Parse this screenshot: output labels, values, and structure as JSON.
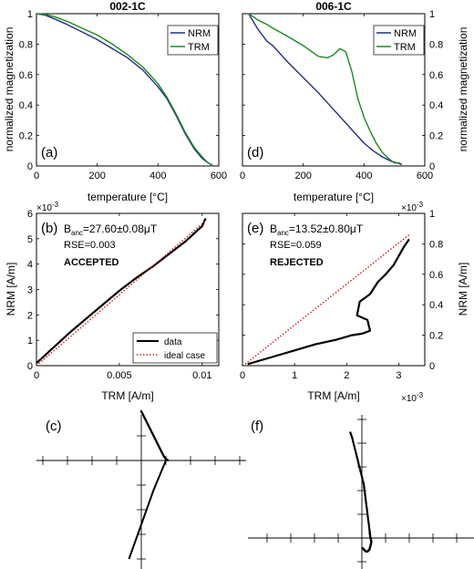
{
  "colors": {
    "nrm": "#1f2f8a",
    "trm": "#1a8a1a",
    "data": "#000000",
    "ideal": "#d62020",
    "axis": "#000000"
  },
  "chart_data": [
    {
      "panel": "(a)",
      "type": "line",
      "title": "002-1C",
      "xlabel": "temperature [°C]",
      "ylabel": "normalized magnetization",
      "xlim": [
        0,
        600
      ],
      "ylim": [
        0,
        1
      ],
      "xticks": [
        "0",
        "200",
        "400",
        "600"
      ],
      "yticks": [
        "0",
        "0.2",
        "0.4",
        "0.6",
        "0.8",
        "1"
      ],
      "legend": {
        "placement": "top-right",
        "entries": [
          "NRM",
          "TRM"
        ]
      },
      "series": [
        {
          "name": "NRM",
          "x": [
            0,
            30,
            60,
            100,
            150,
            200,
            250,
            300,
            350,
            400,
            430,
            460,
            490,
            520,
            545,
            565,
            575,
            580
          ],
          "y": [
            1.0,
            0.99,
            0.965,
            0.93,
            0.88,
            0.83,
            0.77,
            0.71,
            0.63,
            0.52,
            0.44,
            0.33,
            0.21,
            0.11,
            0.05,
            0.02,
            0.01,
            0.0
          ]
        },
        {
          "name": "TRM",
          "x": [
            0,
            30,
            60,
            100,
            150,
            200,
            250,
            300,
            350,
            400,
            430,
            460,
            490,
            520,
            545,
            565,
            575,
            580
          ],
          "y": [
            1.0,
            0.995,
            0.98,
            0.95,
            0.905,
            0.86,
            0.8,
            0.73,
            0.65,
            0.54,
            0.45,
            0.34,
            0.22,
            0.12,
            0.06,
            0.02,
            0.01,
            0.0
          ]
        }
      ]
    },
    {
      "panel": "(d)",
      "type": "line",
      "title": "006-1C",
      "xlabel": "temperature [°C]",
      "ylabel": "normalized magnetization",
      "xlim": [
        0,
        600
      ],
      "ylim": [
        0,
        1
      ],
      "xticks": [
        "0",
        "200",
        "400",
        "600"
      ],
      "yticks": [
        "0",
        "0.2",
        "0.4",
        "0.6",
        "0.8",
        "1"
      ],
      "legend": {
        "placement": "top-right",
        "entries": [
          "NRM",
          "TRM"
        ]
      },
      "series": [
        {
          "name": "NRM",
          "x": [
            20,
            50,
            80,
            100,
            150,
            200,
            250,
            300,
            350,
            400,
            430,
            460,
            490,
            510,
            525
          ],
          "y": [
            1.0,
            0.9,
            0.82,
            0.79,
            0.68,
            0.58,
            0.48,
            0.37,
            0.26,
            0.15,
            0.1,
            0.06,
            0.03,
            0.02,
            0.01
          ]
        },
        {
          "name": "TRM",
          "x": [
            20,
            50,
            80,
            100,
            150,
            200,
            250,
            280,
            300,
            320,
            340,
            360,
            380,
            400,
            420,
            440,
            460,
            480,
            500,
            520
          ],
          "y": [
            1.0,
            0.96,
            0.93,
            0.905,
            0.85,
            0.79,
            0.72,
            0.71,
            0.73,
            0.77,
            0.75,
            0.62,
            0.44,
            0.32,
            0.23,
            0.15,
            0.09,
            0.05,
            0.02,
            0.02
          ]
        }
      ]
    },
    {
      "panel": "(b)",
      "type": "line",
      "xlabel": "TRM [A/m]",
      "ylabel": "NRM [A/m]",
      "xlim": [
        0,
        0.011
      ],
      "ylim": [
        0,
        0.006
      ],
      "xticks": [
        "0",
        "0.005",
        "0.01"
      ],
      "yticks": [
        "0",
        "1",
        "2",
        "3",
        "4",
        "5",
        "6"
      ],
      "y_multiplier": "×10",
      "y_multiplier_exp": "-3",
      "annotation": {
        "b_label": "B",
        "b_sub": "anc",
        "b_value": "=27.60±0.08μT",
        "rse": "RSE=0.003",
        "status": "ACCEPTED"
      },
      "legend": {
        "placement": "bottom-right",
        "entries": [
          "data",
          "ideal case"
        ]
      },
      "series": [
        {
          "name": "data",
          "x": [
            0,
            0.0005,
            0.001,
            0.002,
            0.003,
            0.004,
            0.005,
            0.006,
            0.007,
            0.008,
            0.009,
            0.0095,
            0.01,
            0.0102
          ],
          "y": [
            0.0001,
            0.0004,
            0.0007,
            0.0013,
            0.00185,
            0.0024,
            0.00295,
            0.00345,
            0.0039,
            0.0044,
            0.0049,
            0.0052,
            0.0055,
            0.0058
          ]
        },
        {
          "name": "ideal case",
          "x": [
            0,
            0.0102
          ],
          "y": [
            0,
            0.0057
          ]
        }
      ]
    },
    {
      "panel": "(e)",
      "type": "line",
      "xlabel": "TRM [A/m]",
      "ylabel": "NRM [A/m]",
      "xlim": [
        0,
        0.0035
      ],
      "ylim": [
        0,
        0.001
      ],
      "xticks": [
        "0",
        "1",
        "2",
        "3"
      ],
      "yticks": [
        "0",
        "0.2",
        "0.4",
        "0.6",
        "0.8",
        "1"
      ],
      "x_multiplier": "×10",
      "x_multiplier_exp": "-3",
      "y_multiplier": "×10",
      "y_multiplier_exp": "-3",
      "annotation": {
        "b_label": "B",
        "b_sub": "anc",
        "b_value": "=13.52±0.80μT",
        "rse": "RSE=0.059",
        "status": "REJECTED"
      },
      "series": [
        {
          "name": "data",
          "x": [
            0.0001,
            0.0003,
            0.0006,
            0.001,
            0.0014,
            0.0018,
            0.0021,
            0.0023,
            0.00245,
            0.0024,
            0.0022,
            0.00225,
            0.00245,
            0.0026,
            0.00275,
            0.0029,
            0.003,
            0.0031,
            0.0032
          ],
          "y": [
            1e-05,
            3e-05,
            6e-05,
            0.0001,
            0.00014,
            0.00017,
            0.0002,
            0.00021,
            0.00023,
            0.0003,
            0.00033,
            0.00042,
            0.00047,
            0.00055,
            0.0006,
            0.00066,
            0.00072,
            0.00078,
            0.00083
          ]
        },
        {
          "name": "ideal",
          "x": [
            5e-05,
            0.0032
          ],
          "y": [
            1e-05,
            0.00086
          ]
        }
      ]
    },
    {
      "panel": "(c)",
      "type": "scatter",
      "series": [
        {
          "name": "dots",
          "x": [
            0.0,
            0.1,
            0.2,
            0.3,
            0.4,
            0.5,
            0.6,
            0.7,
            0.8,
            0.9,
            1.0,
            1.1
          ],
          "y": [
            2.0,
            1.8,
            1.6,
            1.4,
            1.2,
            1.0,
            0.8,
            0.6,
            0.4,
            0.2,
            0.05,
            0.0
          ]
        },
        {
          "name": "line",
          "x": [
            -0.5,
            0.0,
            0.5,
            1.0
          ],
          "y": [
            -4.0,
            -2.6,
            -1.2,
            0.0
          ]
        }
      ]
    },
    {
      "panel": "(f)",
      "type": "scatter",
      "series": [
        {
          "name": "dots",
          "x": [
            -0.6,
            -0.5,
            -0.4,
            -0.3,
            -0.2,
            -0.1,
            0.0,
            0.1,
            0.15,
            0.2,
            0.25,
            0.3,
            0.35,
            0.4,
            0.42,
            0.45,
            0.5,
            0.45,
            0.4,
            0.3,
            0.2,
            0.1,
            0.0
          ],
          "y": [
            5.5,
            5.2,
            4.8,
            4.4,
            4.0,
            3.6,
            3.2,
            2.8,
            2.4,
            2.0,
            1.6,
            1.2,
            0.8,
            0.4,
            0.2,
            0.0,
            -0.2,
            -0.4,
            -0.6,
            -0.7,
            -0.7,
            -0.6,
            -0.5
          ]
        }
      ]
    }
  ]
}
